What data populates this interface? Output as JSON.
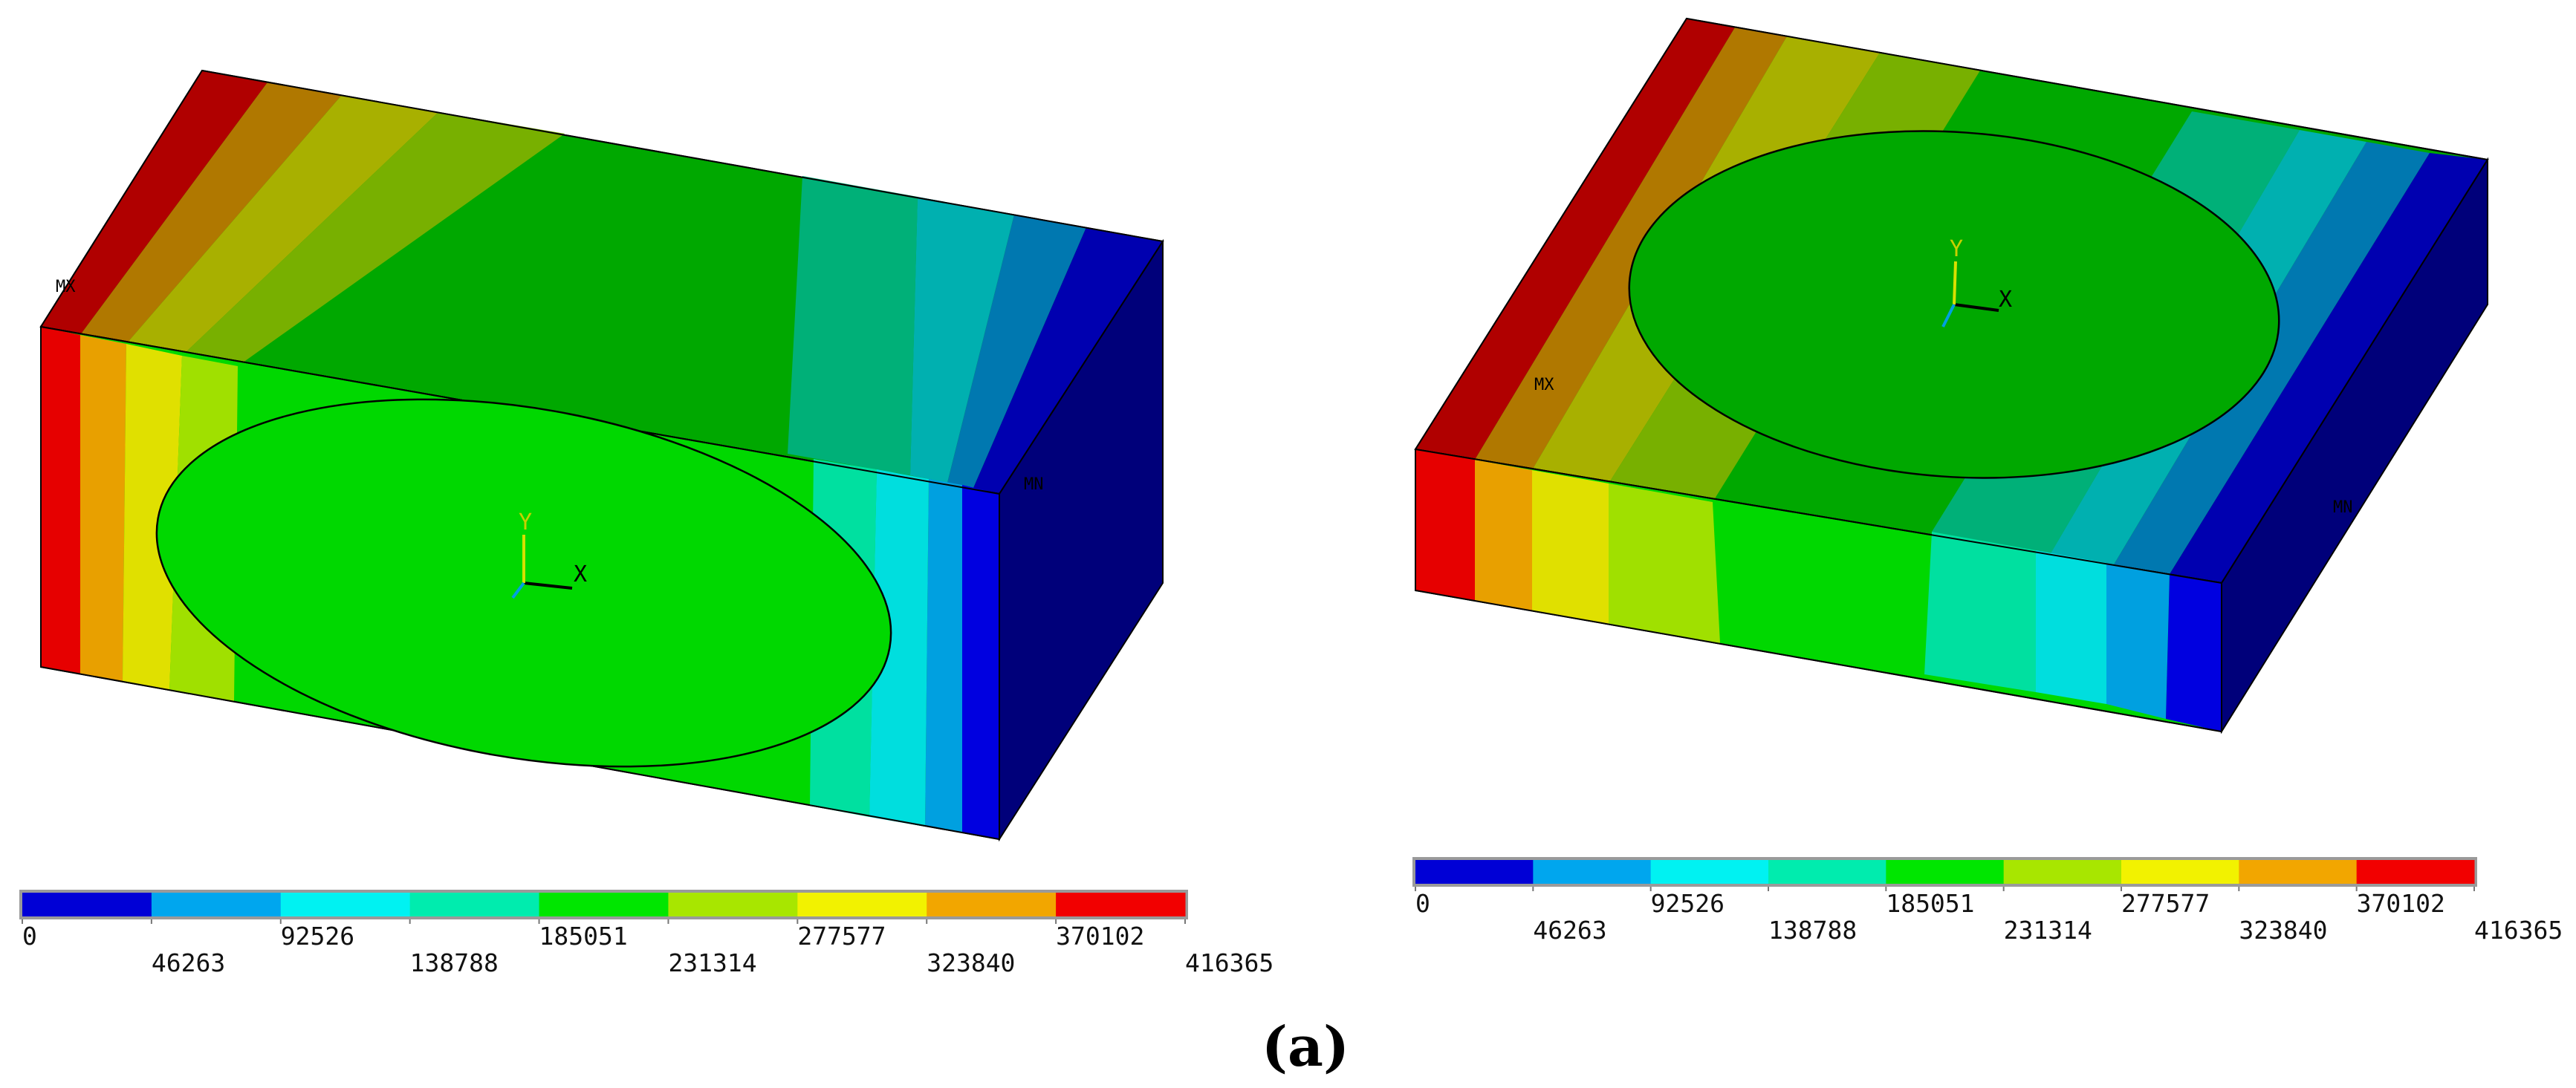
{
  "caption": "(a)",
  "markers": {
    "mx": "MX",
    "mn": "MN",
    "axis_x": "X",
    "axis_y": "Y"
  },
  "legend": {
    "colors": [
      "#0000d6",
      "#00a6ee",
      "#00f2f2",
      "#00ecae",
      "#00e600",
      "#a8e600",
      "#f2f200",
      "#f2a600",
      "#f20000"
    ],
    "values": [
      "0",
      "46263",
      "92526",
      "138788",
      "185051",
      "231314",
      "277577",
      "323840",
      "370102",
      "416365"
    ]
  },
  "contour_palette": {
    "front": [
      "#e60000",
      "#e8a000",
      "#e0e000",
      "#a0e000",
      "#00d800",
      "#00e0a0",
      "#00dede",
      "#00a0e0",
      "#0000e0"
    ],
    "top": [
      "#b00000",
      "#b07800",
      "#a8b000",
      "#78b000",
      "#00a800",
      "#00b078",
      "#00b0b0",
      "#0078b0",
      "#0000b0"
    ],
    "side": "#00007a"
  },
  "panels": [
    {
      "id": "left",
      "shape": "tall block"
    },
    {
      "id": "right",
      "shape": "flat block"
    }
  ]
}
